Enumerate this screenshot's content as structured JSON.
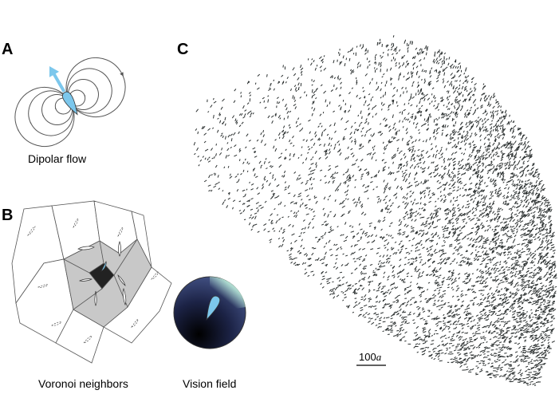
{
  "panels": {
    "a": {
      "label": "A",
      "caption": "Dipolar flow"
    },
    "b": {
      "label": "B",
      "caption": "Voronoi neighbors",
      "vision_caption": "Vision field"
    },
    "c": {
      "label": "C",
      "scale_bar": {
        "number": "100",
        "unit": "a"
      }
    }
  }
}
